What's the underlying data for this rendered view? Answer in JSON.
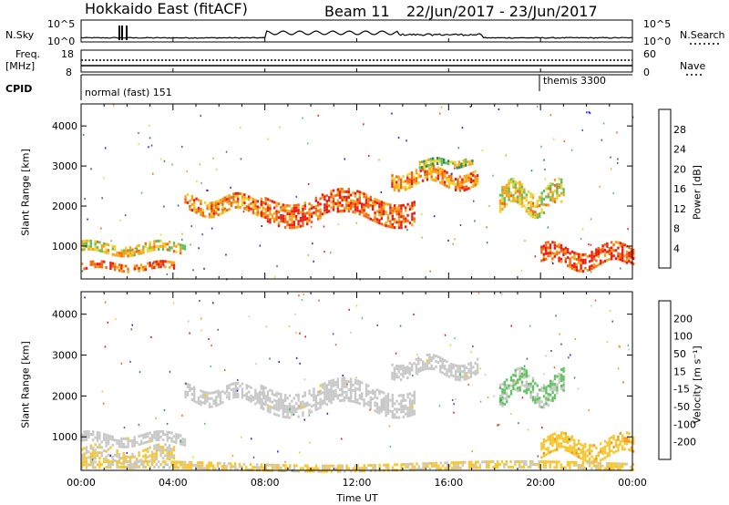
{
  "header": {
    "radar": "Hokkaido East (fitACF)",
    "beam": "Beam 11",
    "dates": "22/Jun/2017 - 23/Jun/2017"
  },
  "strips": {
    "nsky_label": "N.Sky",
    "nsky_ticks": [
      "10^5",
      "10^0"
    ],
    "nsearch_label": "N.Search",
    "nsearch_ticks": [
      "10^5",
      "10^0"
    ],
    "freq_label": "Freq.",
    "freq_unit": "[MHz]",
    "freq_ticks": [
      "18",
      "8"
    ],
    "nave_label": "Nave",
    "nave_ticks": [
      "60",
      "0"
    ],
    "cpid_label": "CPID",
    "cpid_modes": [
      {
        "name": "normal (fast) 151",
        "start_hour": 0
      },
      {
        "name": "themis 3300",
        "start_hour": 20
      }
    ]
  },
  "panels": {
    "power_ylabel": "Slant Range [km]",
    "velocity_ylabel": "Slant Range [km]",
    "xlabel": "Time UT",
    "power_cbar_label": "Power [dB]",
    "power_cbar_ticks": [
      "28",
      "24",
      "20",
      "16",
      "12",
      "8",
      "4"
    ],
    "velocity_cbar_label": "Velocity [m s⁻¹]",
    "velocity_cbar_ticks": [
      "200",
      "100",
      "50",
      "15",
      "-15",
      "-50",
      "-100",
      "-200"
    ]
  },
  "colors": {
    "power_scale": [
      "#1b1bff",
      "#2f5aa8",
      "#2e8b57",
      "#5fbf5f",
      "#f0d22e",
      "#f7a418",
      "#f26a10",
      "#ee1c10"
    ],
    "velocity_scale": [
      "#1b1bff",
      "#2f5aa8",
      "#2e8b57",
      "#5fc45f",
      "#c8c8c8",
      "#f7c62e",
      "#f5991c",
      "#f05d12",
      "#e81010"
    ],
    "ground_scatter": "#c8c8c8"
  },
  "chart_data": [
    {
      "type": "heatmap",
      "title": "Power [dB]",
      "xlabel": "Time UT",
      "ylabel": "Slant Range [km]",
      "x_ticks": [
        "00:00",
        "04:00",
        "08:00",
        "12:00",
        "16:00",
        "20:00",
        "00:00"
      ],
      "y_ticks": [
        1000,
        2000,
        3000,
        4000
      ],
      "xlim_hours": [
        0,
        24
      ],
      "ylim": [
        180,
        4550
      ],
      "colorbar": {
        "label": "Power [dB]",
        "ticks": [
          4,
          8,
          12,
          16,
          20,
          24,
          28
        ],
        "range": [
          0,
          30
        ]
      },
      "echo_regions": [
        {
          "t0": 0.0,
          "t1": 4.0,
          "r_center": 500,
          "r_width": 180,
          "value": 24
        },
        {
          "t0": 0.0,
          "t1": 4.5,
          "r_center": 950,
          "r_width": 250,
          "value": 18
        },
        {
          "t0": 4.5,
          "t1": 8.0,
          "r_center": 2050,
          "r_width": 350,
          "value": 22
        },
        {
          "t0": 7.8,
          "t1": 14.5,
          "r_center": 1950,
          "r_width": 600,
          "value": 25
        },
        {
          "t0": 13.5,
          "t1": 17.3,
          "r_center": 2700,
          "r_width": 400,
          "value": 22
        },
        {
          "t0": 14.7,
          "t1": 17.0,
          "r_center": 3100,
          "r_width": 150,
          "value": 14
        },
        {
          "t0": 18.2,
          "t1": 21.0,
          "r_center": 2200,
          "r_width": 600,
          "value": 18
        },
        {
          "t0": 20.0,
          "t1": 24.0,
          "r_center": 750,
          "r_width": 450,
          "value": 26
        }
      ]
    },
    {
      "type": "heatmap",
      "title": "Velocity [m s⁻¹]",
      "xlabel": "Time UT",
      "ylabel": "Slant Range [km]",
      "x_ticks": [
        "00:00",
        "04:00",
        "08:00",
        "12:00",
        "16:00",
        "20:00",
        "00:00"
      ],
      "y_ticks": [
        1000,
        2000,
        3000,
        4000
      ],
      "xlim_hours": [
        0,
        24
      ],
      "ylim": [
        180,
        4550
      ],
      "colorbar": {
        "label": "Velocity [m s⁻¹]",
        "ticks": [
          200,
          100,
          50,
          15,
          -15,
          -50,
          -100,
          -200
        ],
        "range": [
          -250,
          250
        ]
      },
      "echo_regions": [
        {
          "t0": 0.0,
          "t1": 4.0,
          "r_center": 550,
          "r_width": 350,
          "value": -25
        },
        {
          "t0": 0.0,
          "t1": 4.5,
          "r_center": 950,
          "r_width": 250,
          "value": 0
        },
        {
          "t0": 4.5,
          "t1": 8.0,
          "r_center": 2050,
          "r_width": 350,
          "value": 0
        },
        {
          "t0": 7.8,
          "t1": 14.5,
          "r_center": 1950,
          "r_width": 600,
          "value": 0
        },
        {
          "t0": 13.5,
          "t1": 17.3,
          "r_center": 2700,
          "r_width": 400,
          "value": 0
        },
        {
          "t0": 18.2,
          "t1": 21.0,
          "r_center": 2200,
          "r_width": 600,
          "value": 30
        },
        {
          "t0": 20.0,
          "t1": 24.0,
          "r_center": 750,
          "r_width": 450,
          "value": -60
        },
        {
          "t0": 0.0,
          "t1": 24.0,
          "r_center": 300,
          "r_width": 150,
          "value": -40
        }
      ]
    }
  ]
}
